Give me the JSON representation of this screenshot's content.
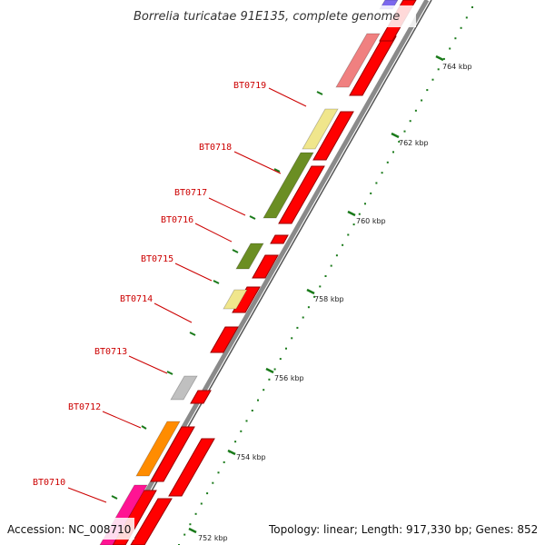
{
  "title": "Borrelia turicatae 91E135, complete genome",
  "footer": {
    "accession": "Accession: NC_008710",
    "summary": "Topology: linear; Length: 917,330 bp; Genes: 852"
  },
  "colors": {
    "gene_red": "#ff0000",
    "backbone_gray": "#8a8a8a",
    "tick_green": "#1a7a1a",
    "label_red": "#cc0000",
    "leader_red": "#cc0000"
  },
  "axis_ticks": [
    "752 kbp",
    "754 kbp",
    "756 kbp",
    "758 kbp",
    "760 kbp",
    "762 kbp",
    "764 kbp"
  ],
  "gene_labels": [
    "BT0710",
    "BT0712",
    "BT0713",
    "BT0714",
    "BT0715",
    "BT0716",
    "BT0717",
    "BT0718",
    "BT0719"
  ],
  "cog_blocks": [
    {
      "color": "#ff1493"
    },
    {
      "color": "#ff8c00"
    },
    {
      "color": "#c0c0c0"
    },
    {
      "color": "#f0e68c"
    },
    {
      "color": "#6b8e23"
    },
    {
      "color": "#6b8e23"
    },
    {
      "color": "#f0e68c"
    },
    {
      "color": "#f08080"
    },
    {
      "color": "#7b68ee"
    }
  ]
}
